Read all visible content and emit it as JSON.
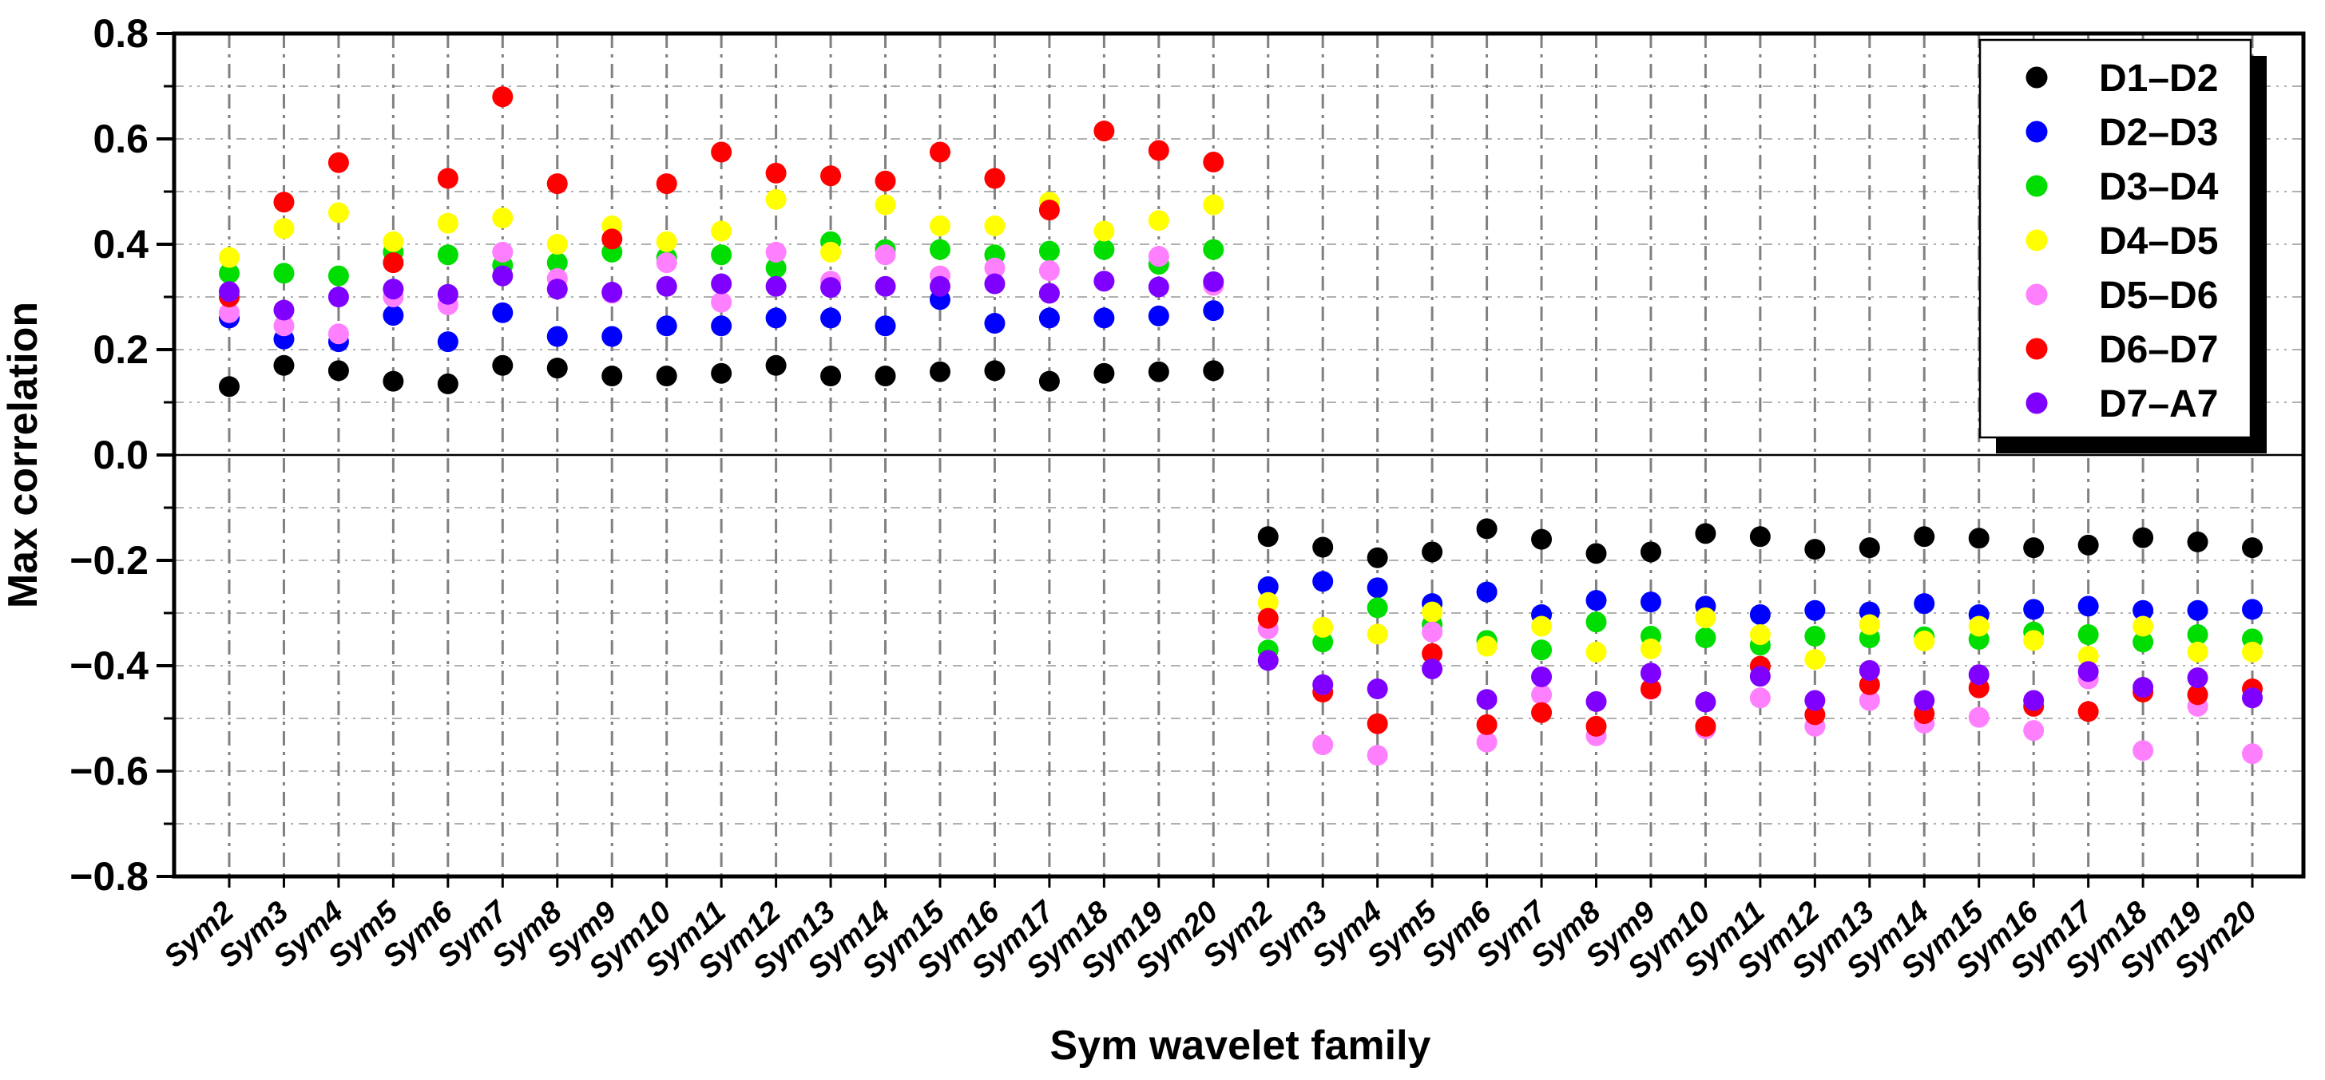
{
  "chart_data": {
    "type": "scatter",
    "title": "",
    "xlabel": "Sym wavelet family",
    "ylabel": "Max correlation",
    "ylim": [
      -0.8,
      0.8
    ],
    "ytick_step": 0.2,
    "yminor_step": 0.1,
    "ytick_labels": [
      "0.8",
      "0.6",
      "0.4",
      "0.2",
      "0.0",
      "−0.2",
      "−0.4",
      "−0.6",
      "−0.8"
    ],
    "grid": true,
    "legend_position": "top-right",
    "categories": [
      "Sym2",
      "Sym3",
      "Sym4",
      "Sym5",
      "Sym6",
      "Sym7",
      "Sym8",
      "Sym9",
      "Sym10",
      "Sym11",
      "Sym12",
      "Sym13",
      "Sym14",
      "Sym15",
      "Sym16",
      "Sym17",
      "Sym18",
      "Sym19",
      "Sym20",
      "Sym2",
      "Sym3",
      "Sym4",
      "Sym5",
      "Sym6",
      "Sym7",
      "Sym8",
      "Sym9",
      "Sym10",
      "Sym11",
      "Sym12",
      "Sym13",
      "Sym14",
      "Sym15",
      "Sym16",
      "Sym17",
      "Sym18",
      "Sym19",
      "Sym20"
    ],
    "series": [
      {
        "name": "D1–D2",
        "color": "#000000",
        "values": [
          0.13,
          0.17,
          0.16,
          0.14,
          0.135,
          0.17,
          0.165,
          0.15,
          0.15,
          0.155,
          0.17,
          0.15,
          0.15,
          0.158,
          0.16,
          0.14,
          0.155,
          0.158,
          0.16,
          -0.155,
          -0.175,
          -0.195,
          -0.184,
          -0.14,
          -0.16,
          -0.187,
          -0.184,
          -0.149,
          -0.155,
          -0.179,
          -0.176,
          -0.155,
          -0.158,
          -0.176,
          -0.171,
          -0.157,
          -0.165,
          -0.176
        ]
      },
      {
        "name": "D2–D3",
        "color": "#0000ff",
        "values": [
          0.26,
          0.22,
          0.215,
          0.265,
          0.215,
          0.27,
          0.225,
          0.225,
          0.245,
          0.245,
          0.26,
          0.26,
          0.245,
          0.295,
          0.25,
          0.26,
          0.26,
          0.264,
          0.274,
          -0.25,
          -0.24,
          -0.252,
          -0.282,
          -0.26,
          -0.303,
          -0.276,
          -0.279,
          -0.287,
          -0.303,
          -0.295,
          -0.298,
          -0.282,
          -0.303,
          -0.293,
          -0.287,
          -0.295,
          -0.295,
          -0.293
        ]
      },
      {
        "name": "D3–D4",
        "color": "#00dd00",
        "values": [
          0.345,
          0.345,
          0.34,
          0.385,
          0.38,
          0.36,
          0.365,
          0.385,
          0.375,
          0.38,
          0.355,
          0.405,
          0.39,
          0.39,
          0.38,
          0.387,
          0.39,
          0.362,
          0.39,
          -0.37,
          -0.355,
          -0.29,
          -0.322,
          -0.352,
          -0.37,
          -0.317,
          -0.344,
          -0.347,
          -0.361,
          -0.344,
          -0.347,
          -0.345,
          -0.35,
          -0.336,
          -0.341,
          -0.355,
          -0.341,
          -0.349
        ]
      },
      {
        "name": "D4–D5",
        "color": "#ffff00",
        "values": [
          0.375,
          0.43,
          0.46,
          0.405,
          0.44,
          0.45,
          0.4,
          0.435,
          0.405,
          0.425,
          0.485,
          0.385,
          0.475,
          0.435,
          0.435,
          0.48,
          0.425,
          0.445,
          0.475,
          -0.28,
          -0.327,
          -0.34,
          -0.298,
          -0.363,
          -0.325,
          -0.374,
          -0.368,
          -0.309,
          -0.341,
          -0.388,
          -0.322,
          -0.353,
          -0.325,
          -0.352,
          -0.382,
          -0.325,
          -0.374,
          -0.374
        ]
      },
      {
        "name": "D5–D6",
        "color": "#ff80ff",
        "values": [
          0.27,
          0.245,
          0.23,
          0.3,
          0.285,
          0.385,
          0.335,
          0.307,
          0.365,
          0.29,
          0.385,
          0.33,
          0.38,
          0.34,
          0.355,
          0.35,
          0.33,
          0.377,
          0.322,
          -0.33,
          -0.55,
          -0.57,
          -0.336,
          -0.545,
          -0.455,
          -0.533,
          -0.445,
          -0.52,
          -0.461,
          -0.515,
          -0.466,
          -0.509,
          -0.498,
          -0.523,
          -0.425,
          -0.561,
          -0.477,
          -0.567
        ]
      },
      {
        "name": "D6–D7",
        "color": "#ff0000",
        "values": [
          0.3,
          0.48,
          0.555,
          0.365,
          0.525,
          0.68,
          0.515,
          0.41,
          0.515,
          0.575,
          0.535,
          0.53,
          0.52,
          0.575,
          0.525,
          0.465,
          0.615,
          0.578,
          0.556,
          -0.31,
          -0.45,
          -0.51,
          -0.377,
          -0.512,
          -0.489,
          -0.515,
          -0.444,
          -0.515,
          -0.401,
          -0.493,
          -0.436,
          -0.491,
          -0.442,
          -0.477,
          -0.487,
          -0.45,
          -0.455,
          -0.444
        ]
      },
      {
        "name": "D7–A7",
        "color": "#7f00ff",
        "values": [
          0.31,
          0.275,
          0.3,
          0.315,
          0.305,
          0.34,
          0.315,
          0.309,
          0.32,
          0.325,
          0.32,
          0.318,
          0.32,
          0.32,
          0.325,
          0.307,
          0.33,
          0.319,
          0.329,
          -0.39,
          -0.436,
          -0.444,
          -0.406,
          -0.464,
          -0.421,
          -0.468,
          -0.414,
          -0.469,
          -0.42,
          -0.466,
          -0.409,
          -0.466,
          -0.417,
          -0.466,
          -0.411,
          -0.441,
          -0.423,
          -0.461
        ]
      }
    ],
    "style": {
      "marker_radius": 13,
      "frame_color": "#000000",
      "vgrid_color": "#808080",
      "hgrid_color": "#b0b0b0",
      "zero_line_color": "#000000",
      "legend_shadow_color": "#000000",
      "legend_bg": "#ffffff"
    }
  }
}
